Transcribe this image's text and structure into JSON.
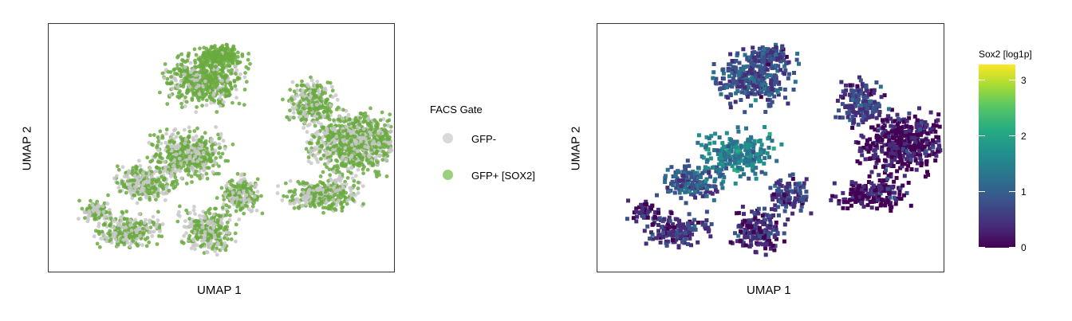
{
  "left_plot": {
    "xlabel": "UMAP 1",
    "ylabel": "UMAP 2",
    "legend": {
      "title": "FACS Gate",
      "entries": [
        {
          "label": "GFP-",
          "color": "#d9d9d9"
        },
        {
          "label": "GFP+ [SOX2]",
          "color": "#9bd07f"
        }
      ]
    },
    "colors": {
      "gfp_negative": "#c8c8c8",
      "gfp_positive": "#6aaa3f"
    }
  },
  "right_plot": {
    "xlabel": "UMAP 1",
    "ylabel": "UMAP 2",
    "colorbar": {
      "title": "Sox2 [log1p]",
      "ticks": [
        "0",
        "1",
        "2",
        "3"
      ],
      "range": [
        0,
        3.2
      ],
      "colormap": "viridis"
    }
  },
  "chart_data": [
    {
      "type": "scatter",
      "title": "",
      "xlabel": "UMAP 1",
      "ylabel": "UMAP 2",
      "series": [
        {
          "name": "GFP-",
          "color": "#c8c8c8"
        },
        {
          "name": "GFP+ [SOX2]",
          "color": "#6aaa3f"
        }
      ],
      "axis_ticks": "none"
    },
    {
      "type": "heatmap",
      "title": "",
      "xlabel": "UMAP 1",
      "ylabel": "UMAP 2",
      "color_label": "Sox2 [log1p]",
      "color_range": [
        0,
        3.2
      ],
      "color_ticks": [
        0,
        1,
        2,
        3
      ],
      "axis_ticks": "none"
    }
  ]
}
